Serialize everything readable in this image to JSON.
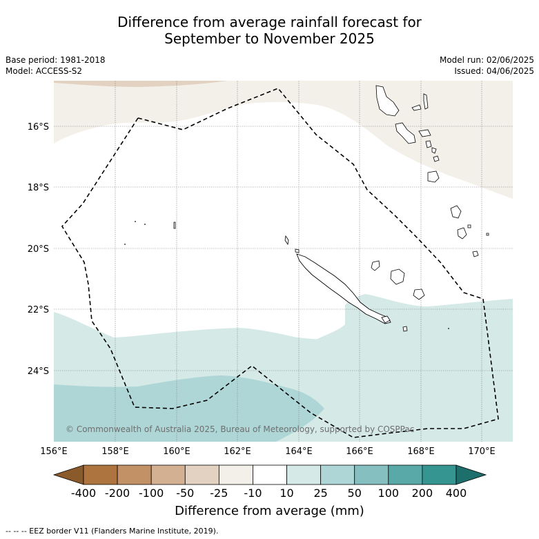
{
  "title": {
    "line1": "Difference from average rainfall forecast for",
    "line2": "September to November 2025"
  },
  "meta": {
    "base_period": "Base period: 1981-2018",
    "model": "Model: ACCESS-S2",
    "model_run": "Model run: 02/06/2025",
    "issued": "Issued: 04/06/2025"
  },
  "map": {
    "lon_ticks": [
      "156°E",
      "158°E",
      "160°E",
      "162°E",
      "164°E",
      "166°E",
      "168°E",
      "170°E"
    ],
    "lat_ticks": [
      "16°S",
      "18°S",
      "20°S",
      "22°S",
      "24°S"
    ],
    "copyright": "© Commonwealth of Australia 2025, Bureau of Meteorology, supported by COSPPac",
    "colors": {
      "dry_100": "#e3d2c1",
      "dry_25": "#f3efe9",
      "neutral": "#ffffff",
      "wet_10": "#d5e9e7",
      "wet_25": "#aed6d6",
      "eez_border": "#000000"
    }
  },
  "colorbar": {
    "ticks": [
      "-400",
      "-200",
      "-100",
      "-50",
      "-25",
      "-10",
      "10",
      "25",
      "50",
      "100",
      "200",
      "400"
    ],
    "colors": [
      "#8b5a2b",
      "#ae7440",
      "#c29166",
      "#d4b092",
      "#e3d2c1",
      "#f3efe9",
      "#ffffff",
      "#d5e9e7",
      "#aed6d6",
      "#86bfbf",
      "#5aa9a9",
      "#349591",
      "#1e6e6c"
    ],
    "title": "Difference from average (mm)"
  },
  "footnote": "-- -- -- EEZ border V11 (Flanders Marine Institute, 2019)."
}
